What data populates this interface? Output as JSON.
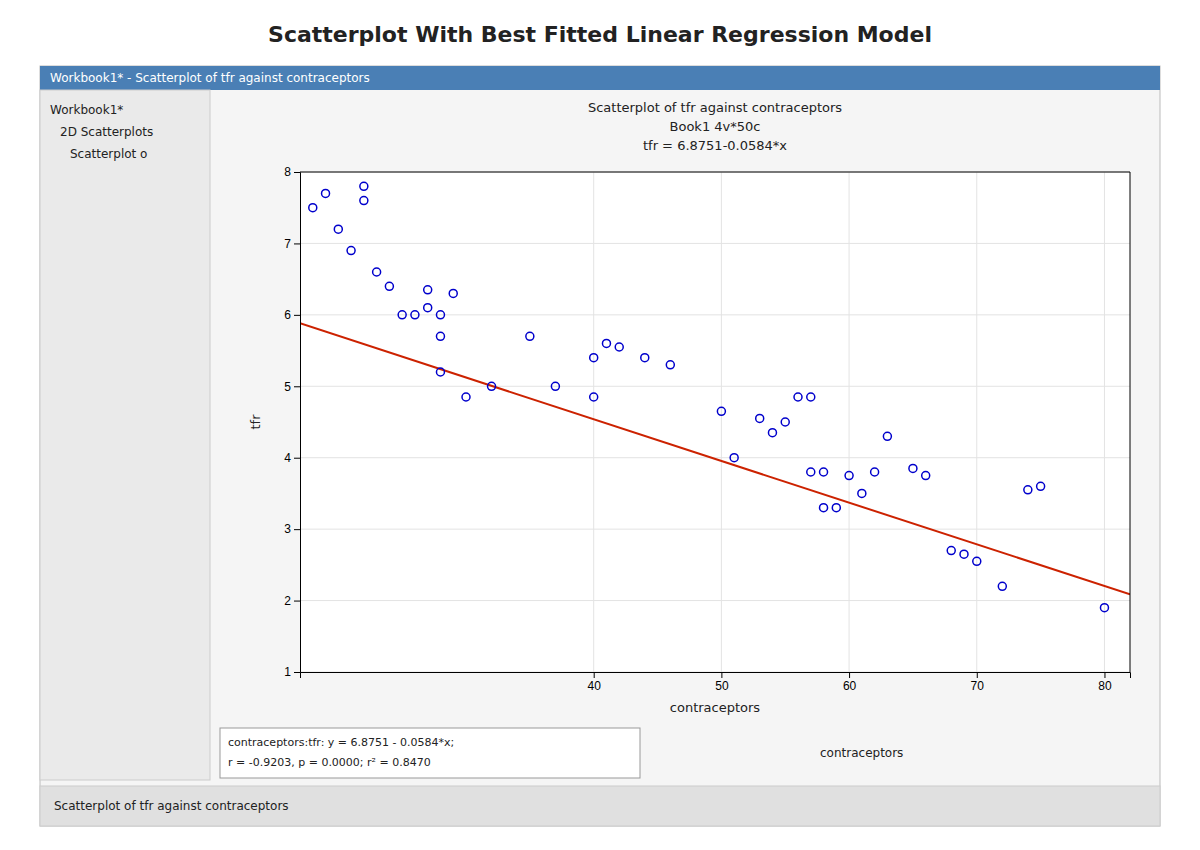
{
  "chart_data": {
    "type": "scatter",
    "title": "Scatterplot With Best Fitted Linear Regression Model",
    "subtitle": [
      "Scatterplot of tfr against contraceptors",
      "Book1 4v*50c",
      "tfr = 6.8751-0.0584*x"
    ],
    "xlabel": "contraceptors",
    "ylabel": "tfr",
    "xlim": [
      17,
      82
    ],
    "ylim": [
      1,
      8
    ],
    "xticks": [
      40,
      50,
      60,
      70,
      80
    ],
    "yticks": [
      1,
      2,
      3,
      4,
      5,
      6,
      7,
      8
    ],
    "grid": true,
    "series": [
      {
        "type": "scatter",
        "color": "#0000cc",
        "marker": "open-circle",
        "x": [
          18,
          19,
          20,
          21,
          22,
          22,
          23,
          24,
          25,
          26,
          27,
          27,
          28,
          28,
          28,
          29,
          30,
          32,
          35,
          37,
          40,
          40,
          41,
          42,
          44,
          46,
          50,
          51,
          53,
          54,
          55,
          56,
          57,
          57,
          58,
          58,
          59,
          60,
          61,
          62,
          63,
          65,
          66,
          68,
          69,
          70,
          72,
          74,
          75,
          80
        ],
        "values": [
          7.5,
          7.7,
          7.2,
          6.9,
          7.6,
          7.8,
          6.6,
          6.4,
          6.0,
          6.0,
          6.1,
          6.35,
          6.0,
          5.7,
          5.2,
          6.3,
          4.85,
          5.0,
          5.7,
          5.0,
          5.4,
          4.85,
          5.6,
          5.55,
          5.4,
          5.3,
          4.65,
          4.0,
          4.55,
          4.35,
          4.5,
          4.85,
          4.85,
          3.8,
          3.8,
          3.3,
          3.3,
          3.75,
          3.5,
          3.8,
          4.3,
          3.85,
          3.75,
          2.7,
          2.65,
          2.55,
          2.2,
          3.55,
          3.6,
          1.9
        ]
      },
      {
        "type": "line",
        "color": "#cc2200",
        "line_style": "solid",
        "x": [
          17,
          82
        ],
        "values": [
          5.8823,
          2.0863
        ]
      }
    ],
    "annotations": [
      "Workbook1* - Scatterplot of tfr against contraceptors",
      "Workbook1*",
      "2D Scatterplots",
      "Scatterplot o",
      "contraceptors:tfr:   y = 6.8751 - 0.0584*x;",
      "r = -0.9203, p = 0.0000; r² = 0.8470",
      "contraceptors",
      "Scatterplot of tfr against contraceptors"
    ]
  }
}
